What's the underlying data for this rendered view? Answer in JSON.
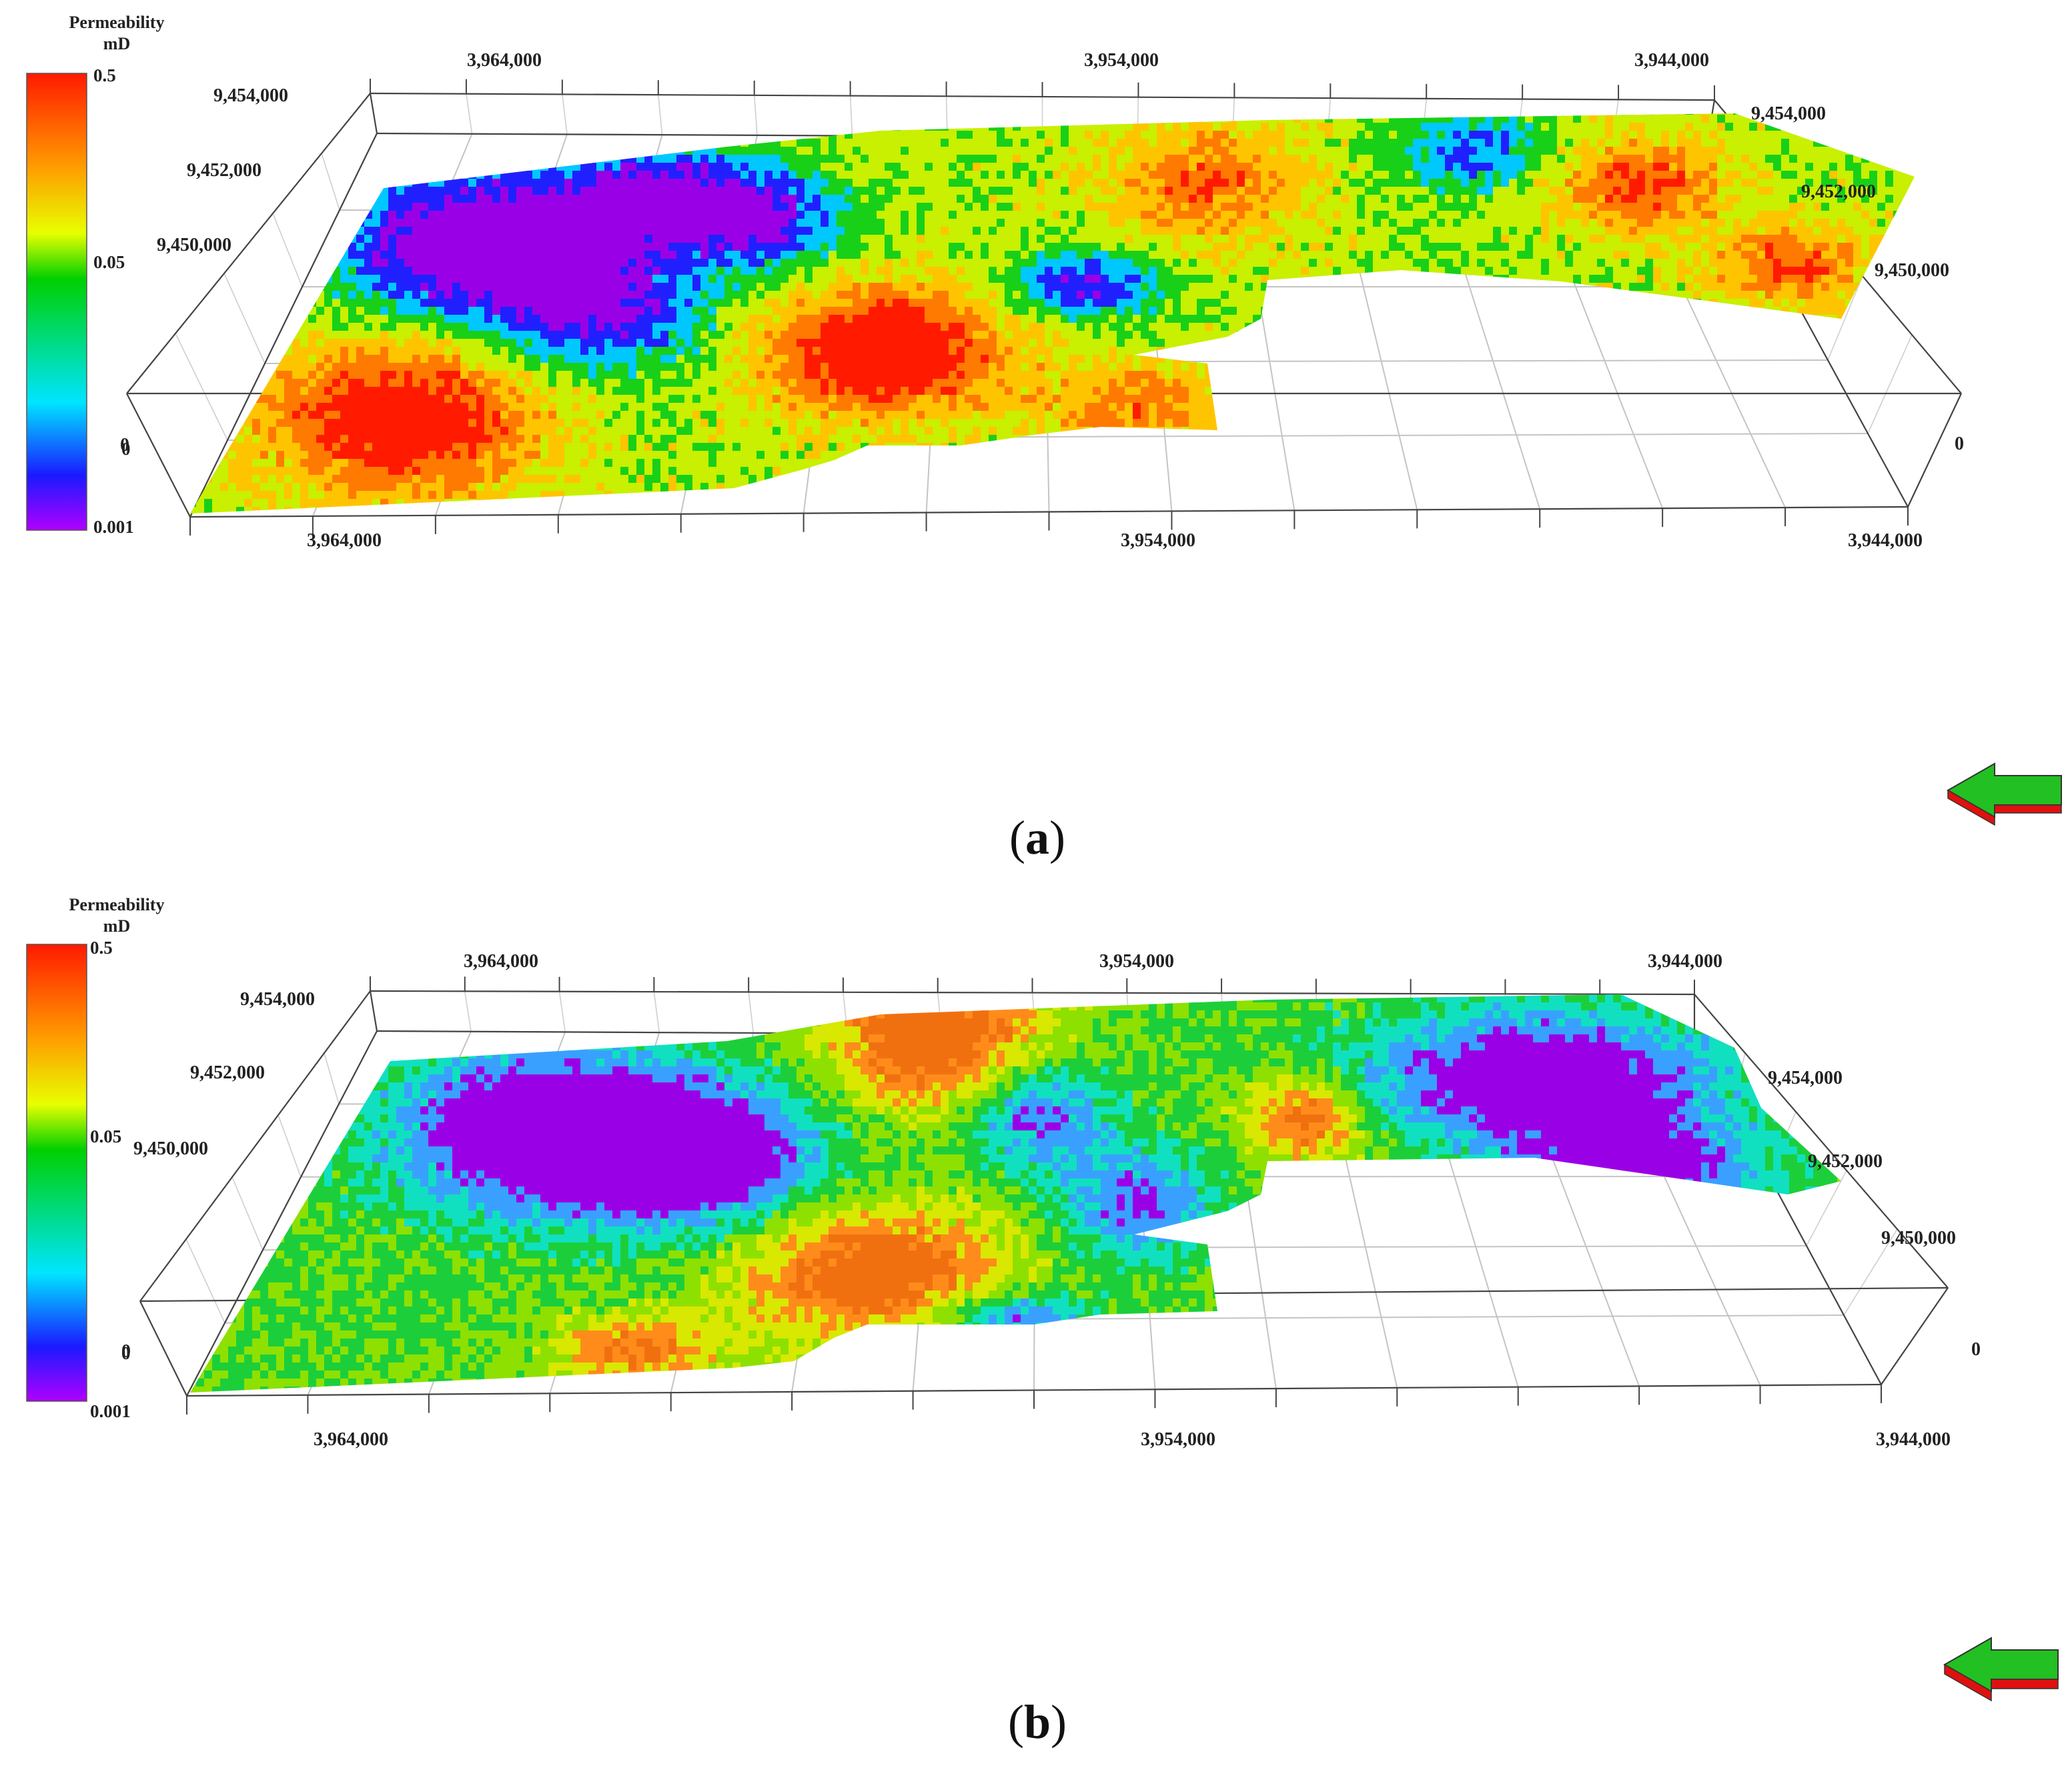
{
  "panels": [
    {
      "id": "a",
      "caption": "a",
      "legend": {
        "title": "Permeability",
        "unit": "mD",
        "ticks": [
          "0.5",
          "0.05",
          "0",
          "0.001"
        ]
      },
      "axis_labels": {
        "top_x": [
          "3,964,000",
          "3,954,000",
          "3,944,000"
        ],
        "bottom_x": [
          "3,964,000",
          "3,954,000",
          "3,944,000"
        ],
        "left_y": [
          "9,454,000",
          "9,452,000",
          "9,450,000",
          "0"
        ],
        "right_y": [
          "9,454,000",
          "9,452,000",
          "9,450,000",
          "0"
        ]
      },
      "palette_bias": "model-a"
    },
    {
      "id": "b",
      "caption": "b",
      "legend": {
        "title": "Permeability",
        "unit": "mD",
        "ticks": [
          "0.5",
          "0.05",
          "0",
          "0.001"
        ]
      },
      "axis_labels": {
        "top_x": [
          "3,964,000",
          "3,954,000",
          "3,944,000"
        ],
        "bottom_x": [
          "3,964,000",
          "3,954,000",
          "3,944,000"
        ],
        "left_y": [
          "9,454,000",
          "9,452,000",
          "9,450,000",
          "0"
        ],
        "right_y": [
          "9,450,000",
          "9,452,000",
          "9,454,000",
          "0"
        ]
      },
      "palette_bias": "model-b"
    }
  ],
  "colors": {
    "scale": [
      "#8a00e6",
      "#1a1aff",
      "#00e5ff",
      "#00d000",
      "#e8ff00",
      "#ff9900",
      "#ff1a00"
    ],
    "grid": "#bdbdbd",
    "box": "#333333",
    "north_arrow_top": "#22c022",
    "north_arrow_bottom": "#e01010"
  },
  "icons": [
    "north-arrow-icon"
  ]
}
